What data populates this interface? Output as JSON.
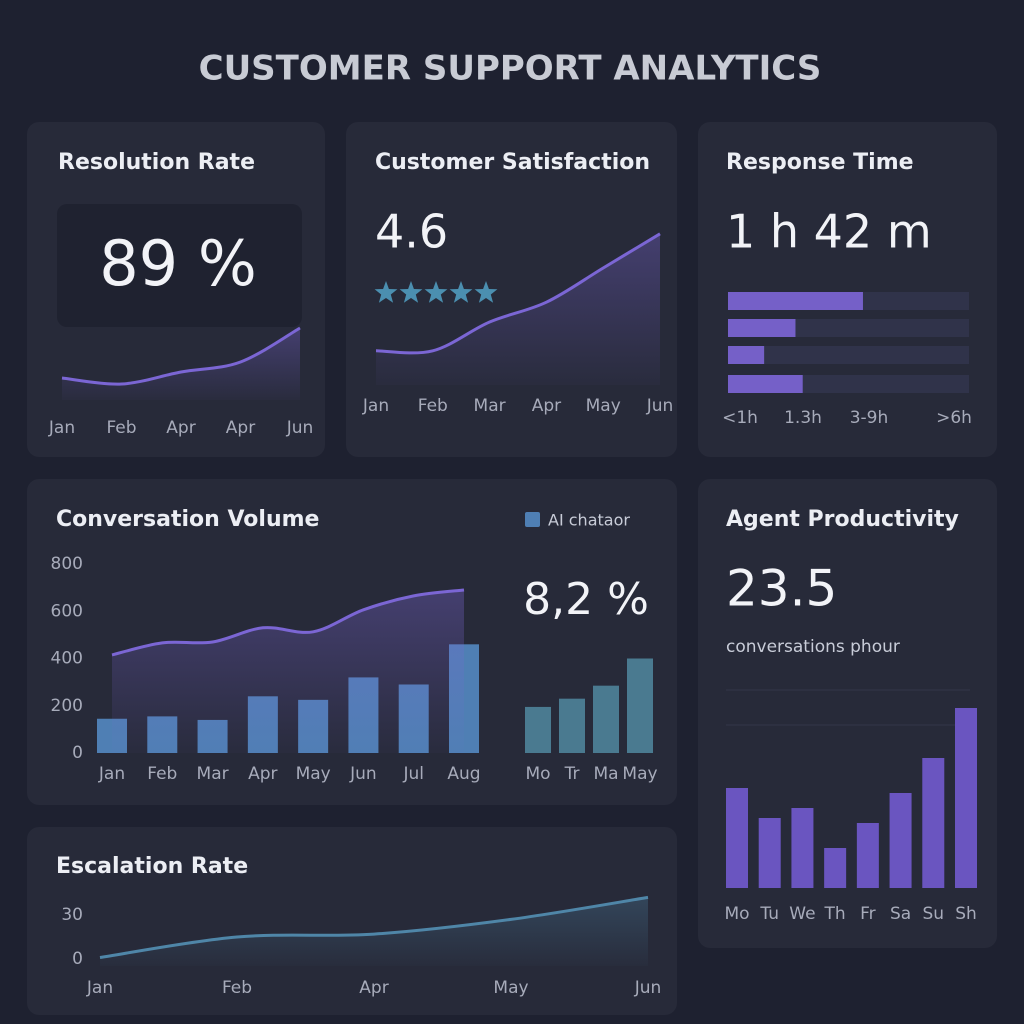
{
  "title": "CUSTOMER SUPPORT ANALYTICS",
  "resolution_rate": {
    "title": "Resolution Rate",
    "value": "89 %",
    "chart": {
      "type": "area",
      "categories": [
        "Jan",
        "Feb",
        "Apr",
        "Apr",
        "Jun"
      ],
      "values": [
        22,
        16,
        28,
        38,
        72
      ],
      "ylim": [
        0,
        100
      ],
      "color": "#7b66d4"
    }
  },
  "customer_satisfaction": {
    "title": "Customer Satisfaction",
    "value": "4.6",
    "stars": 5,
    "star_color": "#4b8fb0",
    "chart": {
      "type": "area",
      "categories": [
        "Jan",
        "Feb",
        "Mar",
        "Apr",
        "May",
        "Jun"
      ],
      "values": [
        19,
        19,
        35,
        46,
        65,
        84
      ],
      "ylim": [
        0,
        100
      ],
      "color": "#7b66d4"
    }
  },
  "response_time": {
    "title": "Response Time",
    "value": "1 h 42 m",
    "chart": {
      "type": "hbar",
      "categories": [
        "<1h",
        "1.3h",
        "3-9h",
        ">6h"
      ],
      "values": [
        56,
        28,
        15,
        31
      ],
      "xlim": [
        0,
        100
      ],
      "color": "#7560c8"
    }
  },
  "conversation_volume": {
    "title": "Conversation Volume",
    "value": "8,2 %",
    "chart": {
      "type": "bar_line",
      "categories": [
        "Jan",
        "Feb",
        "Mar",
        "Apr",
        "May",
        "Jun",
        "Jul",
        "Aug"
      ],
      "series": [
        {
          "name": "AI chataor",
          "type": "bar",
          "color": "#4f7fb4",
          "values": [
            145,
            155,
            140,
            240,
            225,
            320,
            290,
            460
          ]
        },
        {
          "type": "line",
          "color": "#7b66d4",
          "values": [
            415,
            466,
            470,
            530,
            513,
            606,
            665,
            690
          ]
        }
      ],
      "ylim": [
        0,
        800
      ],
      "yticks": [
        0,
        200,
        400,
        600,
        800
      ]
    },
    "side_chart": {
      "type": "bar",
      "categories": [
        "Mo",
        "Tr",
        "Ma",
        "May"
      ],
      "values": [
        195,
        230,
        285,
        400
      ],
      "ylim": [
        0,
        800
      ],
      "color": "#4a7a90"
    }
  },
  "agent_productivity": {
    "title": "Agent Productivity",
    "value": "23.5",
    "unit": "conversations phour",
    "chart": {
      "type": "bar",
      "categories": [
        "Mo",
        "Tu",
        "We",
        "Th",
        "Fr",
        "Sa",
        "Su",
        "Sh"
      ],
      "values": [
        100,
        70,
        80,
        40,
        65,
        95,
        130,
        180
      ],
      "ylim": [
        0,
        200
      ],
      "color": "#6a55c0"
    }
  },
  "escalation_rate": {
    "title": "Escalation Rate",
    "chart": {
      "type": "area",
      "categories": [
        "Jan",
        "Feb",
        "Apr",
        "May",
        "Jun"
      ],
      "values": [
        1,
        15,
        17,
        27,
        42
      ],
      "ylim": [
        0,
        45
      ],
      "yticks": [
        0,
        30
      ],
      "color": "#4f86a8"
    }
  }
}
